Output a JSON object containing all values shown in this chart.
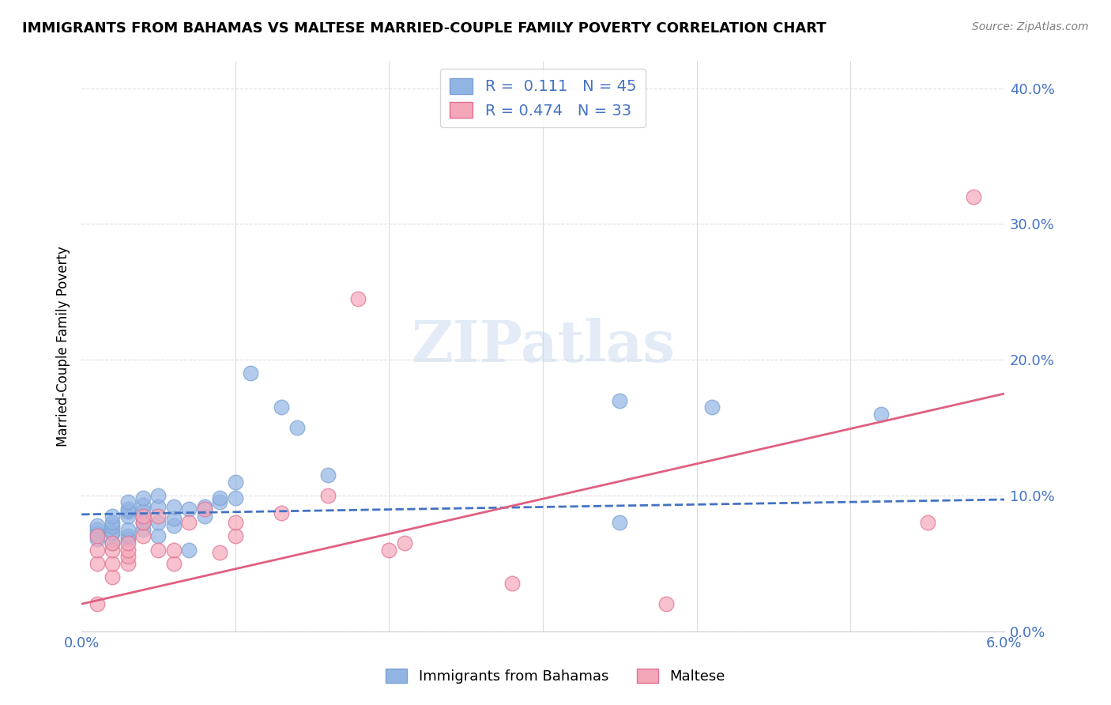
{
  "title": "IMMIGRANTS FROM BAHAMAS VS MALTESE MARRIED-COUPLE FAMILY POVERTY CORRELATION CHART",
  "source": "Source: ZipAtlas.com",
  "ylabel": "Married-Couple Family Poverty",
  "xlim": [
    0.0,
    0.06
  ],
  "ylim": [
    0.0,
    0.42
  ],
  "right_yticks": [
    0.0,
    0.1,
    0.2,
    0.3,
    0.4
  ],
  "right_yticklabels": [
    "0.0%",
    "10.0%",
    "20.0%",
    "30.0%",
    "40.0%"
  ],
  "bottom_xticks": [
    0.0,
    0.01,
    0.02,
    0.03,
    0.04,
    0.05,
    0.06
  ],
  "blue_color": "#92b4e3",
  "pink_color": "#f4a7b9",
  "blue_edge": "#7aa0d4",
  "pink_edge": "#e07090",
  "trend_blue": "#4472c4",
  "trend_pink": "#e06080",
  "watermark": "ZIPatlas",
  "legend_label1": "Immigrants from Bahamas",
  "legend_label2": "Maltese",
  "R1": "0.111",
  "N1": "45",
  "R2": "0.474",
  "N2": "33",
  "blue_x": [
    0.001,
    0.001,
    0.001,
    0.001,
    0.002,
    0.002,
    0.002,
    0.002,
    0.002,
    0.002,
    0.003,
    0.003,
    0.003,
    0.003,
    0.003,
    0.003,
    0.003,
    0.004,
    0.004,
    0.004,
    0.004,
    0.004,
    0.005,
    0.005,
    0.005,
    0.005,
    0.006,
    0.006,
    0.006,
    0.007,
    0.007,
    0.008,
    0.008,
    0.009,
    0.009,
    0.01,
    0.01,
    0.011,
    0.013,
    0.014,
    0.016,
    0.035,
    0.035,
    0.041,
    0.052
  ],
  "blue_y": [
    0.068,
    0.072,
    0.075,
    0.078,
    0.065,
    0.072,
    0.073,
    0.077,
    0.08,
    0.085,
    0.068,
    0.07,
    0.075,
    0.085,
    0.088,
    0.09,
    0.095,
    0.075,
    0.08,
    0.088,
    0.093,
    0.098,
    0.07,
    0.08,
    0.092,
    0.1,
    0.078,
    0.083,
    0.092,
    0.06,
    0.09,
    0.085,
    0.092,
    0.095,
    0.098,
    0.098,
    0.11,
    0.19,
    0.165,
    0.15,
    0.115,
    0.08,
    0.17,
    0.165,
    0.16
  ],
  "pink_x": [
    0.001,
    0.001,
    0.001,
    0.001,
    0.002,
    0.002,
    0.002,
    0.002,
    0.003,
    0.003,
    0.003,
    0.003,
    0.004,
    0.004,
    0.004,
    0.005,
    0.005,
    0.006,
    0.006,
    0.007,
    0.008,
    0.009,
    0.01,
    0.01,
    0.013,
    0.016,
    0.018,
    0.02,
    0.021,
    0.028,
    0.038,
    0.055,
    0.058
  ],
  "pink_y": [
    0.02,
    0.05,
    0.06,
    0.07,
    0.04,
    0.05,
    0.06,
    0.065,
    0.05,
    0.055,
    0.06,
    0.065,
    0.07,
    0.08,
    0.085,
    0.06,
    0.085,
    0.05,
    0.06,
    0.08,
    0.09,
    0.058,
    0.07,
    0.08,
    0.087,
    0.1,
    0.245,
    0.06,
    0.065,
    0.035,
    0.02,
    0.08,
    0.32
  ],
  "blue_trend": [
    0.0,
    0.06
  ],
  "blue_trend_y": [
    0.086,
    0.097
  ],
  "pink_trend": [
    0.0,
    0.06
  ],
  "pink_trend_y": [
    0.02,
    0.175
  ]
}
